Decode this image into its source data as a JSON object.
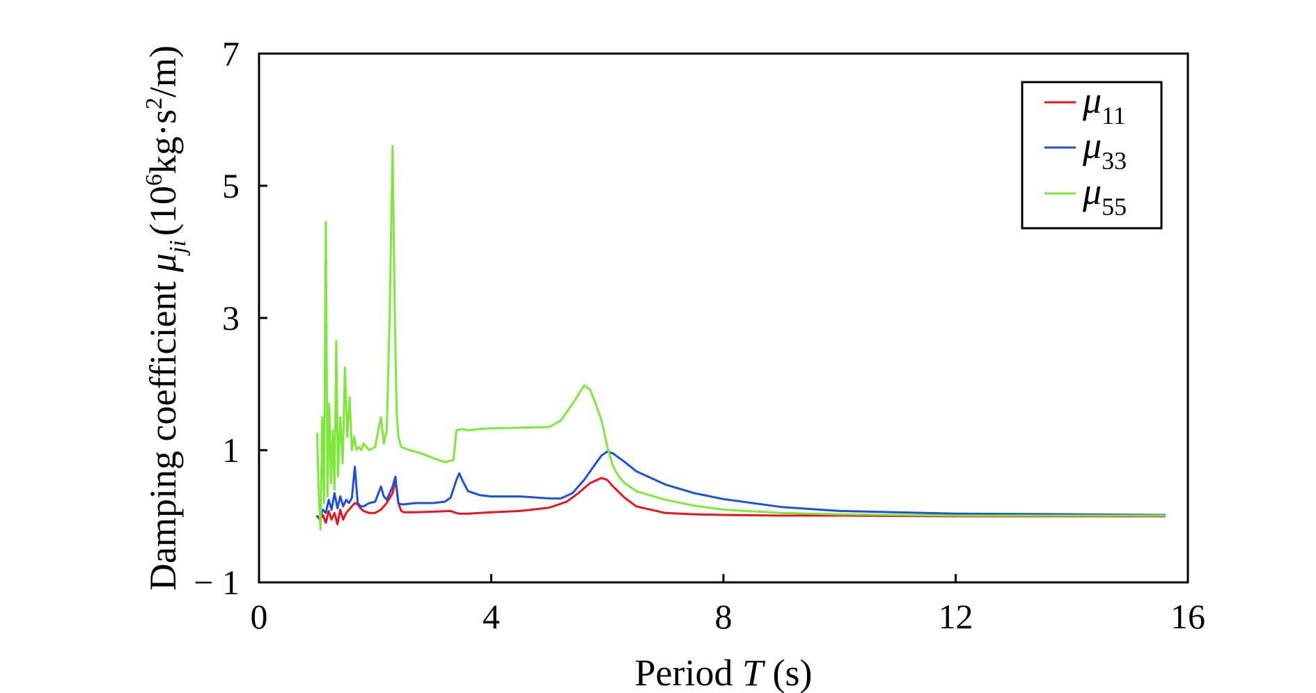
{
  "chart_data": {
    "type": "line",
    "title": "",
    "xlabel": "Period T (s)",
    "ylabel": "Damping coefficient μji (10⁶kg·s²/m)",
    "xlabel_parts": [
      "Period ",
      "T",
      " (s)"
    ],
    "ylabel_parts": [
      "Damping coefficient ",
      "μ",
      "ji",
      "(10",
      "6",
      "kg·s",
      "2",
      "/m)"
    ],
    "xlim": [
      0,
      16
    ],
    "ylim": [
      -1,
      7
    ],
    "xticks": [
      0,
      4,
      8,
      12,
      16
    ],
    "yticks": [
      -1,
      1,
      3,
      5,
      7
    ],
    "ytick_labels": [
      "− 1",
      "1",
      "3",
      "5",
      "7"
    ],
    "grid": false,
    "legend_position": "top-right",
    "series": [
      {
        "name": "μ11",
        "symbol": "μ",
        "subscript": "11",
        "color": "#e8141e",
        "x": [
          1.0,
          1.05,
          1.1,
          1.15,
          1.2,
          1.25,
          1.3,
          1.35,
          1.4,
          1.45,
          1.5,
          1.55,
          1.6,
          1.65,
          1.7,
          1.75,
          1.8,
          1.9,
          2.0,
          2.1,
          2.15,
          2.2,
          2.3,
          2.35,
          2.4,
          2.45,
          2.5,
          2.7,
          3.0,
          3.3,
          3.4,
          3.45,
          3.5,
          3.6,
          4.0,
          4.5,
          5.0,
          5.3,
          5.5,
          5.7,
          5.9,
          6.0,
          6.1,
          6.3,
          6.5,
          7.0,
          7.5,
          8.0,
          9.0,
          10.0,
          12.0,
          14.0,
          15.6
        ],
        "y": [
          0.0,
          -0.05,
          0.02,
          -0.1,
          0.08,
          -0.05,
          0.05,
          -0.12,
          0.1,
          -0.05,
          0.05,
          0.1,
          0.15,
          0.2,
          0.18,
          0.12,
          0.08,
          0.05,
          0.05,
          0.1,
          0.15,
          0.2,
          0.35,
          0.55,
          0.2,
          0.08,
          0.06,
          0.06,
          0.07,
          0.08,
          0.05,
          0.04,
          0.04,
          0.04,
          0.06,
          0.08,
          0.13,
          0.22,
          0.35,
          0.5,
          0.58,
          0.55,
          0.45,
          0.28,
          0.15,
          0.05,
          0.03,
          0.02,
          0.01,
          0.01,
          0.0,
          0.0,
          0.0
        ]
      },
      {
        "name": "μ33",
        "symbol": "μ",
        "subscript": "33",
        "color": "#1f4fd8",
        "x": [
          1.0,
          1.05,
          1.1,
          1.15,
          1.2,
          1.25,
          1.3,
          1.35,
          1.4,
          1.45,
          1.5,
          1.55,
          1.6,
          1.65,
          1.7,
          1.75,
          1.8,
          1.9,
          2.0,
          2.1,
          2.15,
          2.2,
          2.3,
          2.35,
          2.4,
          2.45,
          2.5,
          2.7,
          3.0,
          3.2,
          3.3,
          3.4,
          3.45,
          3.5,
          3.6,
          3.8,
          4.0,
          4.5,
          5.0,
          5.2,
          5.4,
          5.6,
          5.8,
          5.9,
          6.0,
          6.1,
          6.3,
          6.5,
          7.0,
          7.5,
          8.0,
          9.0,
          10.0,
          12.0,
          14.0,
          15.6
        ],
        "y": [
          0.0,
          -0.02,
          0.1,
          0.05,
          0.25,
          0.1,
          0.35,
          0.12,
          0.3,
          0.15,
          0.25,
          0.2,
          0.28,
          0.75,
          0.2,
          0.15,
          0.15,
          0.2,
          0.22,
          0.45,
          0.3,
          0.25,
          0.45,
          0.6,
          0.2,
          0.18,
          0.18,
          0.2,
          0.2,
          0.22,
          0.28,
          0.55,
          0.65,
          0.55,
          0.38,
          0.32,
          0.3,
          0.3,
          0.27,
          0.27,
          0.35,
          0.55,
          0.8,
          0.92,
          0.98,
          0.95,
          0.82,
          0.68,
          0.48,
          0.35,
          0.26,
          0.14,
          0.08,
          0.04,
          0.03,
          0.02
        ]
      },
      {
        "name": "μ55",
        "symbol": "μ",
        "subscript": "55",
        "color": "#7ee83a",
        "x": [
          1.0,
          1.03,
          1.06,
          1.09,
          1.12,
          1.15,
          1.18,
          1.21,
          1.24,
          1.27,
          1.3,
          1.33,
          1.36,
          1.4,
          1.44,
          1.48,
          1.52,
          1.56,
          1.6,
          1.64,
          1.68,
          1.72,
          1.76,
          1.8,
          1.9,
          2.0,
          2.1,
          2.15,
          2.2,
          2.25,
          2.3,
          2.34,
          2.37,
          2.4,
          2.45,
          2.5,
          2.6,
          2.8,
          3.0,
          3.2,
          3.35,
          3.4,
          3.5,
          3.6,
          3.8,
          4.0,
          4.5,
          5.0,
          5.2,
          5.4,
          5.6,
          5.7,
          5.8,
          5.9,
          6.0,
          6.1,
          6.2,
          6.3,
          6.5,
          7.0,
          7.5,
          8.0,
          9.0,
          10.0,
          12.0,
          14.0,
          15.6
        ],
        "y": [
          1.25,
          0.3,
          -0.2,
          1.5,
          0.2,
          4.45,
          0.3,
          1.7,
          0.5,
          1.3,
          0.4,
          2.65,
          0.6,
          1.5,
          0.8,
          2.25,
          1.2,
          1.8,
          1.0,
          1.2,
          1.0,
          1.05,
          1.0,
          1.1,
          1.0,
          1.05,
          1.5,
          1.1,
          1.3,
          3.0,
          5.6,
          3.0,
          1.6,
          1.2,
          1.05,
          1.03,
          1.0,
          0.95,
          0.88,
          0.82,
          0.85,
          1.3,
          1.32,
          1.3,
          1.32,
          1.33,
          1.34,
          1.35,
          1.45,
          1.7,
          1.98,
          1.92,
          1.7,
          1.45,
          1.05,
          0.75,
          0.6,
          0.5,
          0.38,
          0.25,
          0.16,
          0.1,
          0.05,
          0.03,
          0.01,
          0.01,
          0.01
        ]
      }
    ]
  }
}
